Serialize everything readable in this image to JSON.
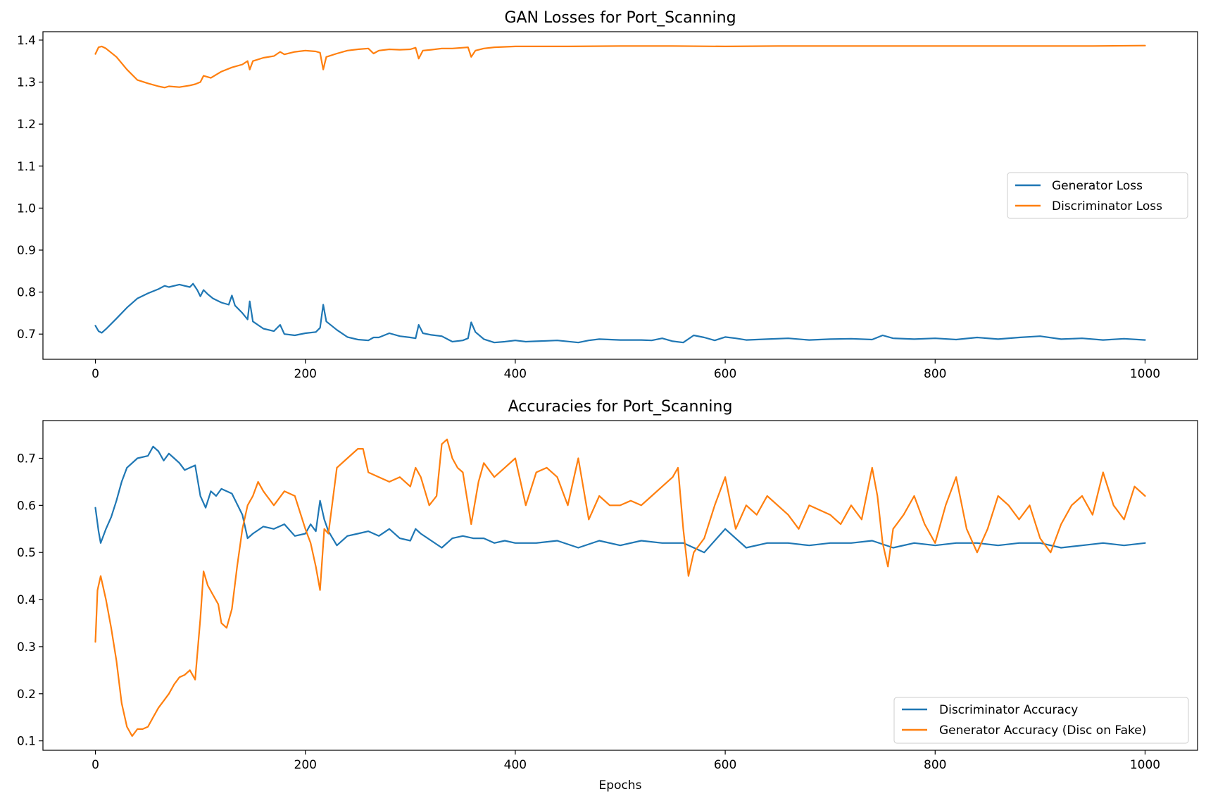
{
  "chart_data": [
    {
      "type": "line",
      "title": "GAN Losses for Port_Scanning",
      "xlabel": "",
      "ylabel": "",
      "xlim": [
        -50,
        1050
      ],
      "ylim": [
        0.64,
        1.42
      ],
      "xticks": [
        0,
        200,
        400,
        600,
        800,
        1000
      ],
      "xtick_labels": [
        "0",
        "200",
        "400",
        "600",
        "800",
        "1000"
      ],
      "yticks": [
        0.7,
        0.8,
        0.9,
        1.0,
        1.1,
        1.2,
        1.3,
        1.4
      ],
      "ytick_labels": [
        "0.7",
        "0.8",
        "0.9",
        "1.0",
        "1.1",
        "1.2",
        "1.3",
        "1.4"
      ],
      "grid": false,
      "legend_position": "center-right",
      "series": [
        {
          "name": "Generator Loss",
          "color": "#1f77b4",
          "x": [
            0,
            3,
            6,
            10,
            20,
            30,
            40,
            50,
            60,
            66,
            70,
            80,
            90,
            93,
            97,
            100,
            103,
            107,
            112,
            120,
            127,
            130,
            133,
            140,
            145,
            147,
            150,
            160,
            170,
            176,
            180,
            190,
            200,
            210,
            214,
            217,
            220,
            230,
            240,
            250,
            260,
            265,
            270,
            280,
            290,
            300,
            305,
            308,
            312,
            320,
            330,
            340,
            350,
            355,
            358,
            362,
            370,
            380,
            390,
            400,
            410,
            420,
            430,
            440,
            460,
            470,
            480,
            500,
            520,
            530,
            540,
            550,
            560,
            570,
            580,
            590,
            600,
            610,
            620,
            640,
            660,
            680,
            700,
            720,
            740,
            750,
            760,
            780,
            800,
            820,
            840,
            860,
            880,
            900,
            920,
            940,
            960,
            980,
            1000
          ],
          "values": [
            0.72,
            0.707,
            0.703,
            0.712,
            0.737,
            0.763,
            0.785,
            0.797,
            0.807,
            0.815,
            0.812,
            0.818,
            0.812,
            0.82,
            0.805,
            0.79,
            0.805,
            0.795,
            0.785,
            0.775,
            0.77,
            0.792,
            0.768,
            0.75,
            0.735,
            0.778,
            0.73,
            0.713,
            0.707,
            0.722,
            0.7,
            0.697,
            0.702,
            0.705,
            0.715,
            0.77,
            0.73,
            0.71,
            0.693,
            0.687,
            0.685,
            0.692,
            0.692,
            0.702,
            0.695,
            0.692,
            0.69,
            0.722,
            0.702,
            0.698,
            0.695,
            0.682,
            0.685,
            0.69,
            0.728,
            0.705,
            0.688,
            0.68,
            0.682,
            0.685,
            0.682,
            0.683,
            0.684,
            0.685,
            0.68,
            0.685,
            0.688,
            0.686,
            0.686,
            0.685,
            0.69,
            0.683,
            0.68,
            0.697,
            0.692,
            0.685,
            0.693,
            0.69,
            0.686,
            0.688,
            0.69,
            0.686,
            0.688,
            0.689,
            0.687,
            0.697,
            0.69,
            0.688,
            0.69,
            0.687,
            0.692,
            0.688,
            0.692,
            0.695,
            0.688,
            0.69,
            0.686,
            0.689,
            0.686
          ]
        },
        {
          "name": "Discriminator Loss",
          "color": "#ff7f0e",
          "x": [
            0,
            3,
            6,
            10,
            20,
            30,
            40,
            50,
            60,
            66,
            70,
            80,
            90,
            95,
            100,
            103,
            110,
            120,
            130,
            140,
            145,
            147,
            150,
            160,
            170,
            176,
            180,
            190,
            200,
            210,
            214,
            217,
            220,
            230,
            240,
            250,
            260,
            265,
            270,
            280,
            290,
            300,
            305,
            308,
            312,
            320,
            330,
            340,
            350,
            355,
            358,
            362,
            370,
            380,
            400,
            450,
            500,
            550,
            600,
            650,
            700,
            750,
            800,
            850,
            900,
            950,
            1000
          ],
          "values": [
            1.367,
            1.383,
            1.385,
            1.38,
            1.36,
            1.33,
            1.305,
            1.297,
            1.29,
            1.287,
            1.29,
            1.288,
            1.292,
            1.295,
            1.3,
            1.315,
            1.31,
            1.325,
            1.335,
            1.342,
            1.35,
            1.33,
            1.35,
            1.358,
            1.362,
            1.372,
            1.366,
            1.372,
            1.375,
            1.373,
            1.37,
            1.33,
            1.36,
            1.368,
            1.375,
            1.378,
            1.38,
            1.368,
            1.375,
            1.378,
            1.377,
            1.378,
            1.382,
            1.356,
            1.375,
            1.377,
            1.38,
            1.38,
            1.382,
            1.383,
            1.36,
            1.375,
            1.38,
            1.383,
            1.385,
            1.385,
            1.386,
            1.386,
            1.385,
            1.386,
            1.386,
            1.386,
            1.386,
            1.386,
            1.386,
            1.386,
            1.387
          ]
        }
      ]
    },
    {
      "type": "line",
      "title": "Accuracies for Port_Scanning",
      "xlabel": "Epochs",
      "ylabel": "",
      "xlim": [
        -50,
        1050
      ],
      "ylim": [
        0.08,
        0.78
      ],
      "xticks": [
        0,
        200,
        400,
        600,
        800,
        1000
      ],
      "xtick_labels": [
        "0",
        "200",
        "400",
        "600",
        "800",
        "1000"
      ],
      "yticks": [
        0.1,
        0.2,
        0.3,
        0.4,
        0.5,
        0.6,
        0.7
      ],
      "ytick_labels": [
        "0.1",
        "0.2",
        "0.3",
        "0.4",
        "0.5",
        "0.6",
        "0.7"
      ],
      "grid": false,
      "legend_position": "lower-right",
      "series": [
        {
          "name": "Discriminator Accuracy",
          "color": "#1f77b4",
          "x": [
            0,
            3,
            5,
            10,
            15,
            20,
            25,
            30,
            40,
            50,
            55,
            60,
            65,
            70,
            75,
            80,
            85,
            90,
            95,
            100,
            105,
            110,
            115,
            120,
            130,
            140,
            145,
            150,
            160,
            170,
            180,
            190,
            200,
            205,
            210,
            214,
            218,
            222,
            230,
            240,
            250,
            260,
            270,
            280,
            290,
            300,
            305,
            310,
            320,
            330,
            340,
            350,
            360,
            370,
            380,
            390,
            400,
            420,
            440,
            460,
            480,
            500,
            520,
            540,
            560,
            580,
            600,
            620,
            640,
            660,
            680,
            700,
            720,
            740,
            760,
            780,
            800,
            820,
            840,
            860,
            880,
            900,
            920,
            940,
            960,
            980,
            1000
          ],
          "values": [
            0.595,
            0.545,
            0.52,
            0.55,
            0.575,
            0.61,
            0.65,
            0.68,
            0.7,
            0.705,
            0.725,
            0.715,
            0.695,
            0.71,
            0.7,
            0.69,
            0.675,
            0.68,
            0.685,
            0.62,
            0.595,
            0.63,
            0.62,
            0.635,
            0.625,
            0.58,
            0.53,
            0.54,
            0.555,
            0.55,
            0.56,
            0.535,
            0.54,
            0.56,
            0.545,
            0.61,
            0.57,
            0.545,
            0.515,
            0.535,
            0.54,
            0.545,
            0.535,
            0.55,
            0.53,
            0.525,
            0.55,
            0.54,
            0.525,
            0.51,
            0.53,
            0.535,
            0.53,
            0.53,
            0.52,
            0.525,
            0.52,
            0.52,
            0.525,
            0.51,
            0.525,
            0.515,
            0.525,
            0.52,
            0.52,
            0.5,
            0.55,
            0.51,
            0.52,
            0.52,
            0.515,
            0.52,
            0.52,
            0.525,
            0.51,
            0.52,
            0.515,
            0.52,
            0.52,
            0.515,
            0.52,
            0.52,
            0.51,
            0.515,
            0.52,
            0.515,
            0.52
          ]
        },
        {
          "name": "Generator Accuracy (Disc on Fake)",
          "color": "#ff7f0e",
          "x": [
            0,
            2,
            5,
            10,
            15,
            20,
            25,
            30,
            35,
            40,
            45,
            50,
            55,
            60,
            65,
            70,
            75,
            80,
            85,
            90,
            95,
            100,
            103,
            107,
            112,
            117,
            120,
            125,
            130,
            135,
            140,
            145,
            150,
            155,
            160,
            170,
            180,
            190,
            200,
            205,
            210,
            214,
            218,
            222,
            230,
            240,
            250,
            255,
            260,
            270,
            280,
            290,
            300,
            305,
            310,
            318,
            325,
            330,
            335,
            340,
            345,
            350,
            358,
            365,
            370,
            380,
            390,
            400,
            405,
            410,
            420,
            430,
            440,
            450,
            455,
            460,
            470,
            480,
            490,
            500,
            510,
            520,
            530,
            540,
            550,
            555,
            560,
            565,
            570,
            580,
            590,
            600,
            610,
            620,
            630,
            640,
            650,
            660,
            670,
            680,
            690,
            700,
            710,
            720,
            730,
            740,
            745,
            750,
            755,
            760,
            770,
            780,
            790,
            800,
            810,
            820,
            830,
            840,
            850,
            860,
            870,
            880,
            890,
            900,
            910,
            920,
            930,
            940,
            950,
            960,
            970,
            980,
            990,
            1000
          ],
          "values": [
            0.31,
            0.42,
            0.45,
            0.4,
            0.34,
            0.27,
            0.18,
            0.13,
            0.11,
            0.125,
            0.125,
            0.13,
            0.15,
            0.17,
            0.185,
            0.2,
            0.22,
            0.235,
            0.24,
            0.25,
            0.23,
            0.36,
            0.46,
            0.43,
            0.41,
            0.39,
            0.35,
            0.34,
            0.38,
            0.47,
            0.55,
            0.6,
            0.62,
            0.65,
            0.63,
            0.6,
            0.63,
            0.62,
            0.55,
            0.52,
            0.47,
            0.42,
            0.55,
            0.54,
            0.68,
            0.7,
            0.72,
            0.72,
            0.67,
            0.66,
            0.65,
            0.66,
            0.64,
            0.68,
            0.66,
            0.6,
            0.62,
            0.73,
            0.74,
            0.7,
            0.68,
            0.67,
            0.56,
            0.65,
            0.69,
            0.66,
            0.68,
            0.7,
            0.65,
            0.6,
            0.67,
            0.68,
            0.66,
            0.6,
            0.65,
            0.7,
            0.57,
            0.62,
            0.6,
            0.6,
            0.61,
            0.6,
            0.62,
            0.64,
            0.66,
            0.68,
            0.55,
            0.45,
            0.5,
            0.53,
            0.6,
            0.66,
            0.55,
            0.6,
            0.58,
            0.62,
            0.6,
            0.58,
            0.55,
            0.6,
            0.59,
            0.58,
            0.56,
            0.6,
            0.57,
            0.68,
            0.62,
            0.52,
            0.47,
            0.55,
            0.58,
            0.62,
            0.56,
            0.52,
            0.6,
            0.66,
            0.55,
            0.5,
            0.55,
            0.62,
            0.6,
            0.57,
            0.6,
            0.53,
            0.5,
            0.56,
            0.6,
            0.62,
            0.58,
            0.67,
            0.6,
            0.57,
            0.64,
            0.62
          ]
        }
      ]
    }
  ]
}
